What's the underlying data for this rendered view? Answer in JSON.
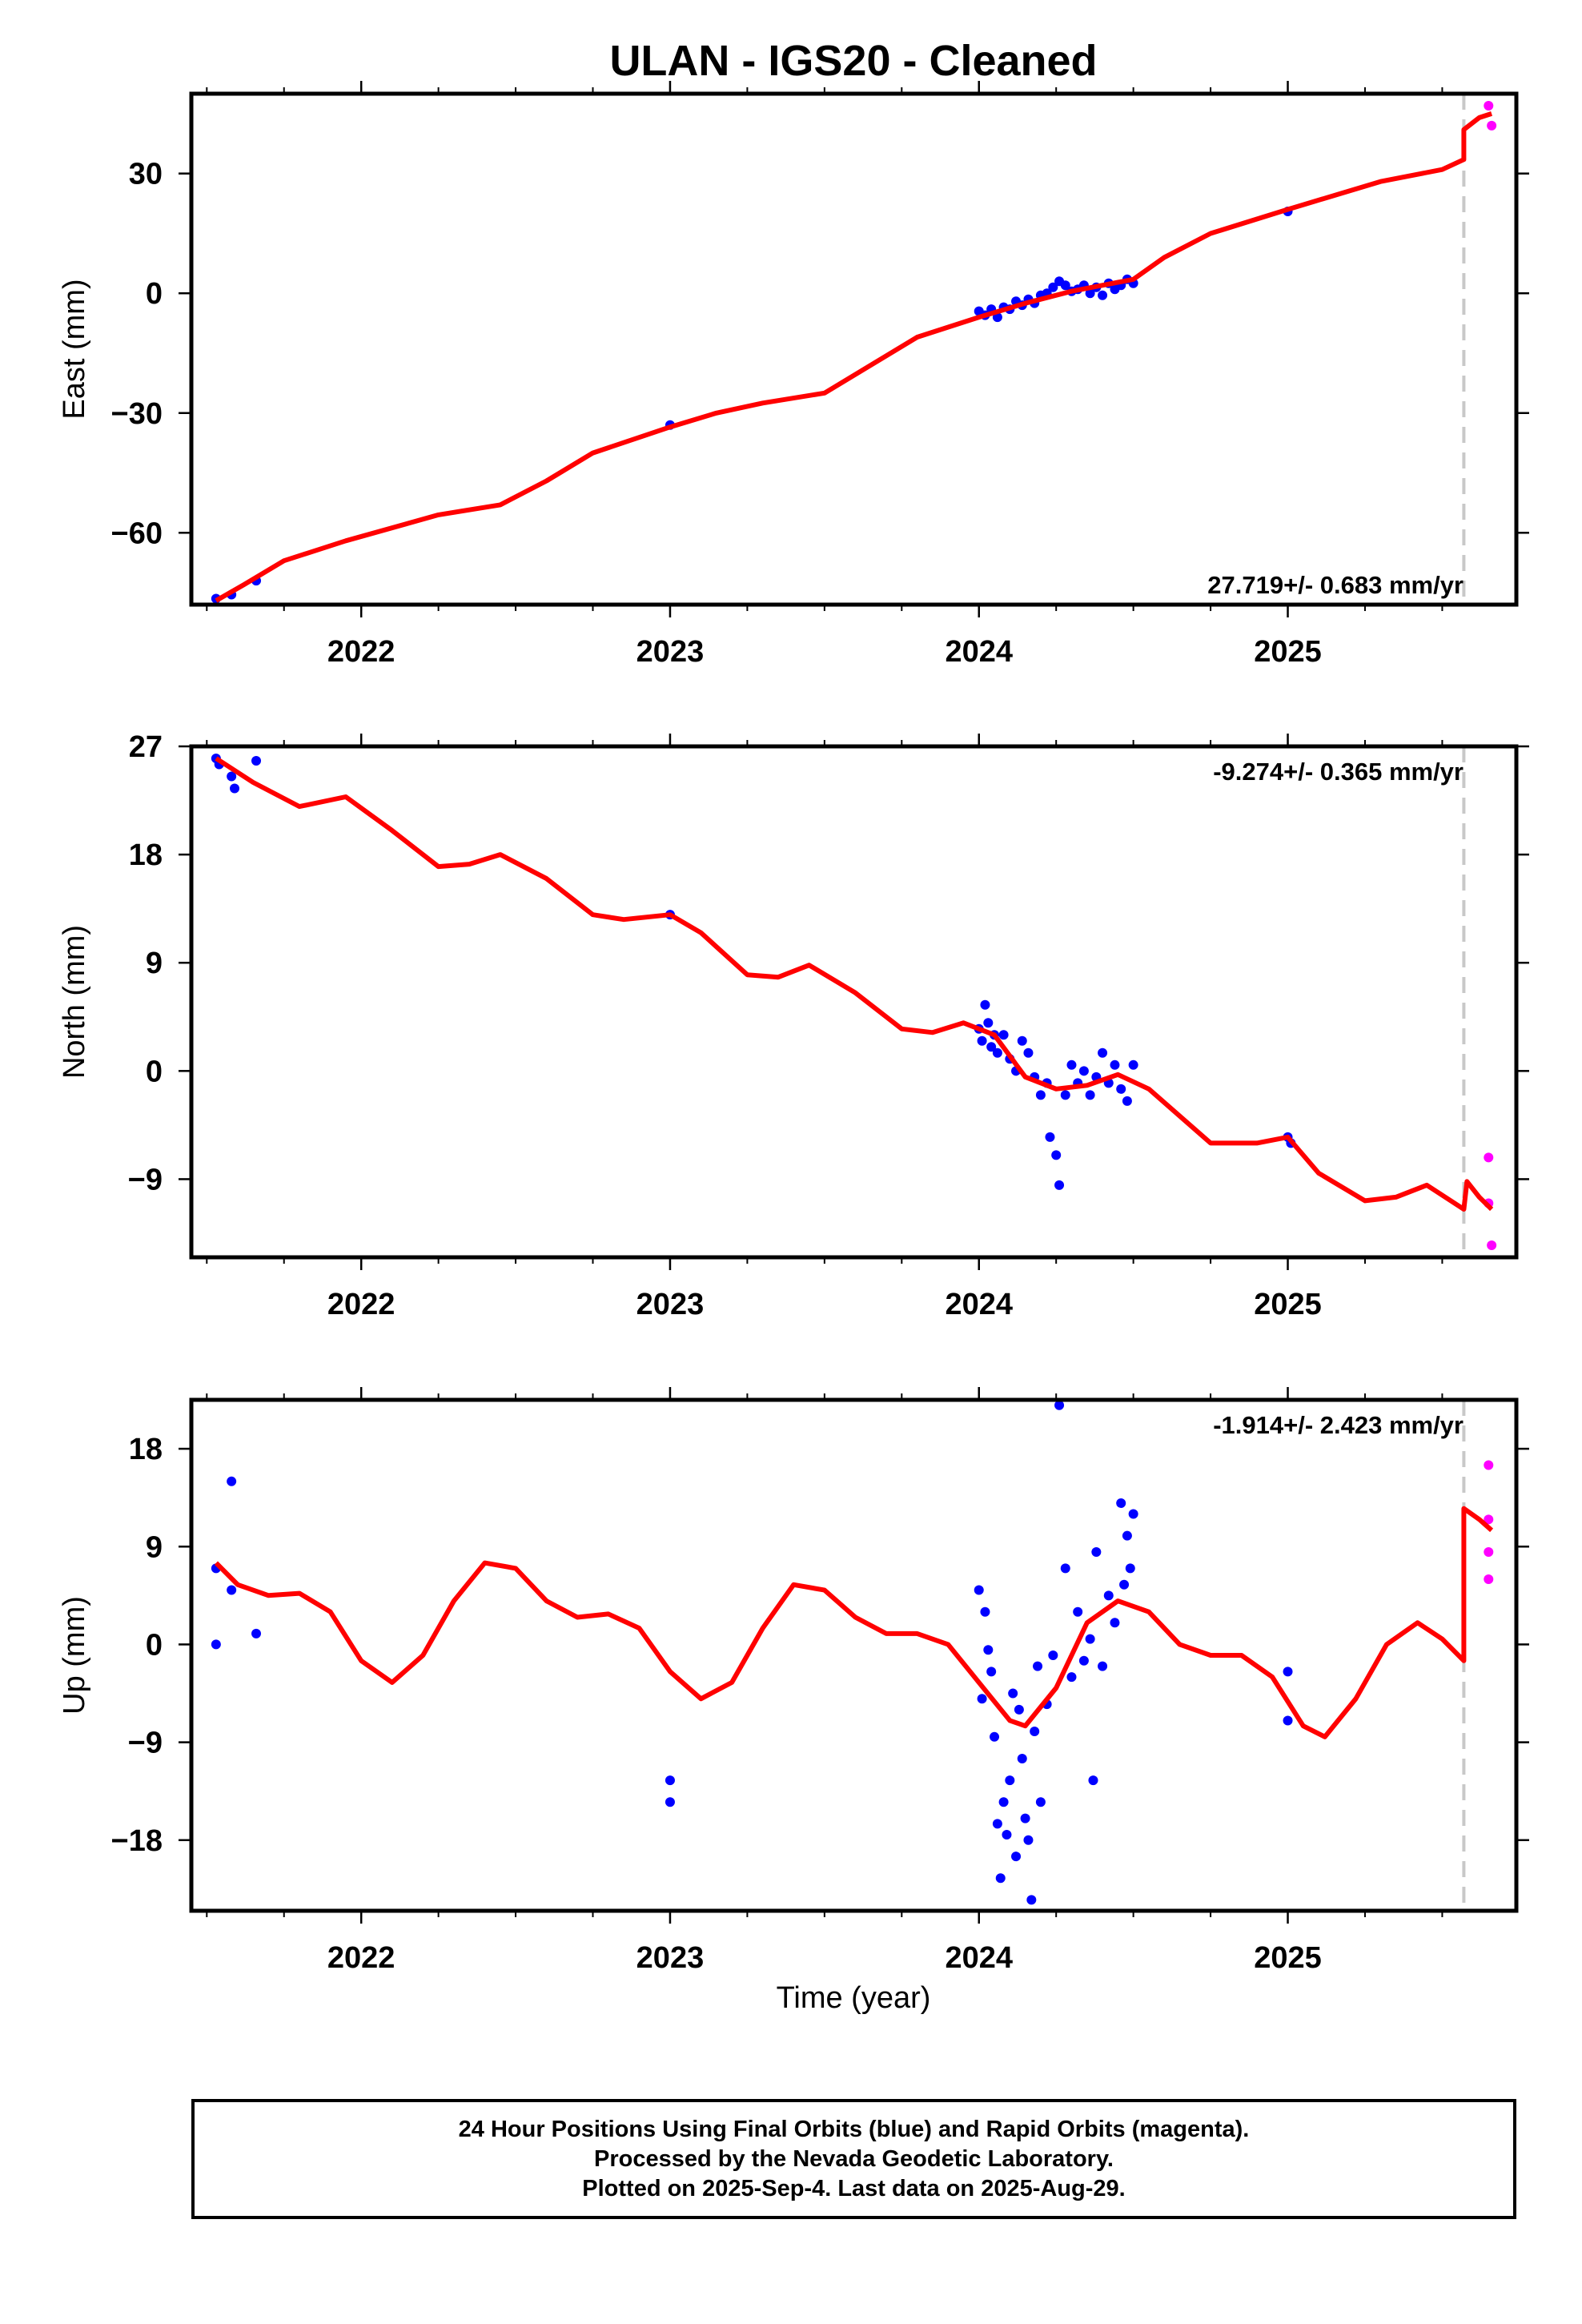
{
  "title": "ULAN  - IGS20 - Cleaned",
  "xlabel": "Time (year)",
  "caption": {
    "line1": "24 Hour Positions Using Final Orbits (blue) and Rapid Orbits (magenta).",
    "line2": "Processed by the Nevada Geodetic Laboratory.",
    "line3": "Plotted on 2025-Sep-4. Last data on 2025-Aug-29."
  },
  "colors": {
    "final": "#0000ff",
    "rapid": "#ff00ff",
    "model": "#ff0000",
    "break": "#c8c8c8"
  },
  "chart_data": [
    {
      "type": "scatter",
      "name": "east",
      "ylabel": "East (mm)",
      "rate": "27.719+/- 0.683 mm/yr",
      "xlim": [
        2021.45,
        2025.74
      ],
      "ylim": [
        -78,
        50
      ],
      "yticks": [
        -60,
        -30,
        0,
        30
      ],
      "xticks": [
        2022,
        2023,
        2024,
        2025
      ],
      "break_x": 2025.57,
      "final_points": [
        [
          2021.53,
          -76.5
        ],
        [
          2021.58,
          -75.5
        ],
        [
          2021.66,
          -72.0
        ],
        [
          2023.0,
          -33.0
        ],
        [
          2024.0,
          -4.5
        ],
        [
          2024.02,
          -5.5
        ],
        [
          2024.04,
          -4.0
        ],
        [
          2024.06,
          -6.0
        ],
        [
          2024.08,
          -3.5
        ],
        [
          2024.1,
          -4.0
        ],
        [
          2024.12,
          -2.0
        ],
        [
          2024.14,
          -3.0
        ],
        [
          2024.16,
          -1.5
        ],
        [
          2024.18,
          -2.5
        ],
        [
          2024.2,
          -0.5
        ],
        [
          2024.22,
          0.0
        ],
        [
          2024.24,
          1.5
        ],
        [
          2024.26,
          3.0
        ],
        [
          2024.28,
          2.0
        ],
        [
          2024.3,
          0.5
        ],
        [
          2024.32,
          1.0
        ],
        [
          2024.34,
          2.0
        ],
        [
          2024.36,
          0.0
        ],
        [
          2024.38,
          1.5
        ],
        [
          2024.4,
          -0.5
        ],
        [
          2024.42,
          2.5
        ],
        [
          2024.44,
          1.0
        ],
        [
          2024.46,
          2.0
        ],
        [
          2024.48,
          3.5
        ],
        [
          2024.5,
          2.5
        ],
        [
          2025.0,
          20.5
        ]
      ],
      "rapid_points": [
        [
          2025.65,
          47.0
        ],
        [
          2025.66,
          42.0
        ]
      ],
      "model": [
        [
          2021.53,
          -77.0
        ],
        [
          2021.62,
          -73.0
        ],
        [
          2021.75,
          -67.0
        ],
        [
          2021.95,
          -62.0
        ],
        [
          2022.25,
          -55.5
        ],
        [
          2022.45,
          -53.0
        ],
        [
          2022.6,
          -47.0
        ],
        [
          2022.75,
          -40.0
        ],
        [
          2023.0,
          -33.5
        ],
        [
          2023.15,
          -30.0
        ],
        [
          2023.3,
          -27.5
        ],
        [
          2023.5,
          -25.0
        ],
        [
          2023.65,
          -18.0
        ],
        [
          2023.8,
          -11.0
        ],
        [
          2024.0,
          -6.0
        ],
        [
          2024.15,
          -2.5
        ],
        [
          2024.3,
          0.5
        ],
        [
          2024.5,
          3.5
        ],
        [
          2024.6,
          9.0
        ],
        [
          2024.75,
          15.0
        ],
        [
          2025.0,
          21.0
        ],
        [
          2025.15,
          24.5
        ],
        [
          2025.3,
          28.0
        ],
        [
          2025.5,
          31.0
        ],
        [
          2025.57,
          33.5
        ],
        [
          2025.57,
          41.0
        ],
        [
          2025.62,
          44.0
        ],
        [
          2025.66,
          45.0
        ]
      ]
    },
    {
      "type": "scatter",
      "name": "north",
      "ylabel": "North (mm)",
      "rate": "-9.274+/- 0.365 mm/yr",
      "xlim": [
        2021.45,
        2025.74
      ],
      "ylim": [
        -15.5,
        27
      ],
      "yticks": [
        -9,
        0,
        9,
        18,
        27
      ],
      "xticks": [
        2022,
        2023,
        2024,
        2025
      ],
      "break_x": 2025.57,
      "final_points": [
        [
          2021.53,
          26.0
        ],
        [
          2021.54,
          25.5
        ],
        [
          2021.58,
          24.5
        ],
        [
          2021.59,
          23.5
        ],
        [
          2021.66,
          25.8
        ],
        [
          2023.0,
          13.0
        ],
        [
          2024.0,
          3.5
        ],
        [
          2024.01,
          2.5
        ],
        [
          2024.02,
          5.5
        ],
        [
          2024.03,
          4.0
        ],
        [
          2024.04,
          2.0
        ],
        [
          2024.05,
          3.0
        ],
        [
          2024.06,
          1.5
        ],
        [
          2024.08,
          3.0
        ],
        [
          2024.1,
          1.0
        ],
        [
          2024.12,
          0.0
        ],
        [
          2024.14,
          2.5
        ],
        [
          2024.16,
          1.5
        ],
        [
          2024.18,
          -0.5
        ],
        [
          2024.2,
          -2.0
        ],
        [
          2024.22,
          -1.0
        ],
        [
          2024.23,
          -5.5
        ],
        [
          2024.25,
          -7.0
        ],
        [
          2024.26,
          -9.5
        ],
        [
          2024.28,
          -2.0
        ],
        [
          2024.3,
          0.5
        ],
        [
          2024.32,
          -1.0
        ],
        [
          2024.34,
          0.0
        ],
        [
          2024.36,
          -2.0
        ],
        [
          2024.38,
          -0.5
        ],
        [
          2024.4,
          1.5
        ],
        [
          2024.42,
          -1.0
        ],
        [
          2024.44,
          0.5
        ],
        [
          2024.46,
          -1.5
        ],
        [
          2024.48,
          -2.5
        ],
        [
          2024.5,
          0.5
        ],
        [
          2025.0,
          -5.5
        ],
        [
          2025.01,
          -6.0
        ]
      ],
      "rapid_points": [
        [
          2025.65,
          -7.2
        ],
        [
          2025.66,
          -14.5
        ],
        [
          2025.65,
          -11.0
        ]
      ],
      "model": [
        [
          2021.53,
          26.0
        ],
        [
          2021.65,
          24.0
        ],
        [
          2021.8,
          22.0
        ],
        [
          2021.95,
          22.8
        ],
        [
          2022.1,
          20.0
        ],
        [
          2022.25,
          17.0
        ],
        [
          2022.35,
          17.2
        ],
        [
          2022.45,
          18.0
        ],
        [
          2022.6,
          16.0
        ],
        [
          2022.75,
          13.0
        ],
        [
          2022.85,
          12.6
        ],
        [
          2023.0,
          13.0
        ],
        [
          2023.1,
          11.5
        ],
        [
          2023.25,
          8.0
        ],
        [
          2023.35,
          7.8
        ],
        [
          2023.45,
          8.8
        ],
        [
          2023.6,
          6.5
        ],
        [
          2023.75,
          3.5
        ],
        [
          2023.85,
          3.2
        ],
        [
          2023.95,
          4.0
        ],
        [
          2024.05,
          3.0
        ],
        [
          2024.15,
          -0.5
        ],
        [
          2024.25,
          -1.5
        ],
        [
          2024.35,
          -1.2
        ],
        [
          2024.45,
          -0.3
        ],
        [
          2024.55,
          -1.5
        ],
        [
          2024.75,
          -6.0
        ],
        [
          2024.9,
          -6.0
        ],
        [
          2025.0,
          -5.5
        ],
        [
          2025.1,
          -8.5
        ],
        [
          2025.25,
          -10.8
        ],
        [
          2025.35,
          -10.5
        ],
        [
          2025.45,
          -9.5
        ],
        [
          2025.57,
          -11.5
        ],
        [
          2025.58,
          -9.2
        ],
        [
          2025.62,
          -10.5
        ],
        [
          2025.66,
          -11.5
        ]
      ]
    },
    {
      "type": "scatter",
      "name": "up",
      "ylabel": "Up (mm)",
      "rate": "-1.914+/- 2.423 mm/yr",
      "xlim": [
        2021.45,
        2025.74
      ],
      "ylim": [
        -24.5,
        22.5
      ],
      "yticks": [
        -18,
        -9,
        0,
        9,
        18
      ],
      "xticks": [
        2022,
        2023,
        2024,
        2025
      ],
      "break_x": 2025.57,
      "final_points": [
        [
          2021.53,
          7.0
        ],
        [
          2021.53,
          0.0
        ],
        [
          2021.58,
          15.0
        ],
        [
          2021.58,
          5.0
        ],
        [
          2021.66,
          1.0
        ],
        [
          2023.0,
          -12.5
        ],
        [
          2023.0,
          -14.5
        ],
        [
          2024.0,
          5.0
        ],
        [
          2024.01,
          -5.0
        ],
        [
          2024.02,
          3.0
        ],
        [
          2024.03,
          -0.5
        ],
        [
          2024.04,
          -2.5
        ],
        [
          2024.05,
          -8.5
        ],
        [
          2024.06,
          -16.5
        ],
        [
          2024.07,
          -21.5
        ],
        [
          2024.08,
          -14.5
        ],
        [
          2024.09,
          -17.5
        ],
        [
          2024.1,
          -12.5
        ],
        [
          2024.11,
          -4.5
        ],
        [
          2024.12,
          -19.5
        ],
        [
          2024.13,
          -6.0
        ],
        [
          2024.14,
          -10.5
        ],
        [
          2024.15,
          -16.0
        ],
        [
          2024.16,
          -18.0
        ],
        [
          2024.17,
          -23.5
        ],
        [
          2024.18,
          -8.0
        ],
        [
          2024.19,
          -2.0
        ],
        [
          2024.2,
          -14.5
        ],
        [
          2024.22,
          -5.5
        ],
        [
          2024.24,
          -1.0
        ],
        [
          2024.26,
          22.0
        ],
        [
          2024.28,
          7.0
        ],
        [
          2024.3,
          -3.0
        ],
        [
          2024.32,
          3.0
        ],
        [
          2024.34,
          -1.5
        ],
        [
          2024.36,
          0.5
        ],
        [
          2024.37,
          -12.5
        ],
        [
          2024.38,
          8.5
        ],
        [
          2024.4,
          -2.0
        ],
        [
          2024.42,
          4.5
        ],
        [
          2024.44,
          2.0
        ],
        [
          2024.46,
          13.0
        ],
        [
          2024.47,
          5.5
        ],
        [
          2024.48,
          10.0
        ],
        [
          2024.49,
          7.0
        ],
        [
          2024.5,
          12.0
        ],
        [
          2025.0,
          -2.5
        ],
        [
          2025.0,
          -7.0
        ]
      ],
      "rapid_points": [
        [
          2025.65,
          16.5
        ],
        [
          2025.65,
          11.5
        ],
        [
          2025.65,
          8.5
        ],
        [
          2025.65,
          6.0
        ]
      ],
      "model": [
        [
          2021.53,
          7.5
        ],
        [
          2021.6,
          5.5
        ],
        [
          2021.7,
          4.5
        ],
        [
          2021.8,
          4.7
        ],
        [
          2021.9,
          3.0
        ],
        [
          2022.0,
          -1.5
        ],
        [
          2022.1,
          -3.5
        ],
        [
          2022.2,
          -1.0
        ],
        [
          2022.3,
          4.0
        ],
        [
          2022.4,
          7.5
        ],
        [
          2022.5,
          7.0
        ],
        [
          2022.6,
          4.0
        ],
        [
          2022.7,
          2.5
        ],
        [
          2022.8,
          2.8
        ],
        [
          2022.9,
          1.5
        ],
        [
          2023.0,
          -2.5
        ],
        [
          2023.1,
          -5.0
        ],
        [
          2023.2,
          -3.5
        ],
        [
          2023.3,
          1.5
        ],
        [
          2023.4,
          5.5
        ],
        [
          2023.5,
          5.0
        ],
        [
          2023.6,
          2.5
        ],
        [
          2023.7,
          1.0
        ],
        [
          2023.8,
          1.0
        ],
        [
          2023.9,
          0.0
        ],
        [
          2024.0,
          -3.5
        ],
        [
          2024.1,
          -7.0
        ],
        [
          2024.15,
          -7.5
        ],
        [
          2024.25,
          -4.0
        ],
        [
          2024.35,
          2.0
        ],
        [
          2024.45,
          4.0
        ],
        [
          2024.55,
          3.0
        ],
        [
          2024.65,
          0.0
        ],
        [
          2024.75,
          -1.0
        ],
        [
          2024.85,
          -1.0
        ],
        [
          2024.95,
          -3.0
        ],
        [
          2025.05,
          -7.5
        ],
        [
          2025.12,
          -8.5
        ],
        [
          2025.22,
          -5.0
        ],
        [
          2025.32,
          0.0
        ],
        [
          2025.42,
          2.0
        ],
        [
          2025.5,
          0.5
        ],
        [
          2025.57,
          -1.5
        ],
        [
          2025.57,
          12.5
        ],
        [
          2025.62,
          11.5
        ],
        [
          2025.66,
          10.5
        ]
      ]
    }
  ]
}
